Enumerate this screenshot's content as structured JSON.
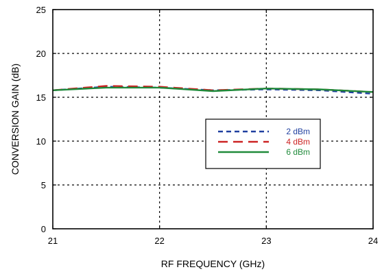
{
  "chart_data": {
    "type": "line",
    "title": "",
    "xlabel": "RF FREQUENCY (GHz)",
    "ylabel": "CONVERSION GAIN (dB)",
    "xlim": [
      21,
      24
    ],
    "ylim": [
      0,
      25
    ],
    "x_ticks": [
      21,
      22,
      23,
      24
    ],
    "y_ticks": [
      0,
      5,
      10,
      15,
      20,
      25
    ],
    "grid": true,
    "legend_position": "center-right",
    "series": [
      {
        "name": "2 dBm",
        "color": "#1f3f9f",
        "dash": "dashed",
        "x": [
          21,
          21.5,
          22,
          22.5,
          23,
          23.5,
          24
        ],
        "y": [
          15.8,
          16.2,
          16.1,
          15.8,
          15.9,
          15.8,
          15.4
        ]
      },
      {
        "name": "4 dBm",
        "color": "#cc2222",
        "dash": "long-dashed",
        "x": [
          21,
          21.5,
          22,
          22.5,
          23,
          23.5,
          24
        ],
        "y": [
          15.8,
          16.3,
          16.2,
          15.8,
          16.0,
          15.9,
          15.6
        ]
      },
      {
        "name": "6 dBm",
        "color": "#1f8a3a",
        "dash": "solid",
        "x": [
          21,
          21.5,
          22,
          22.5,
          23,
          23.5,
          24
        ],
        "y": [
          15.8,
          16.1,
          16.1,
          15.7,
          16.0,
          15.9,
          15.6
        ]
      }
    ]
  }
}
